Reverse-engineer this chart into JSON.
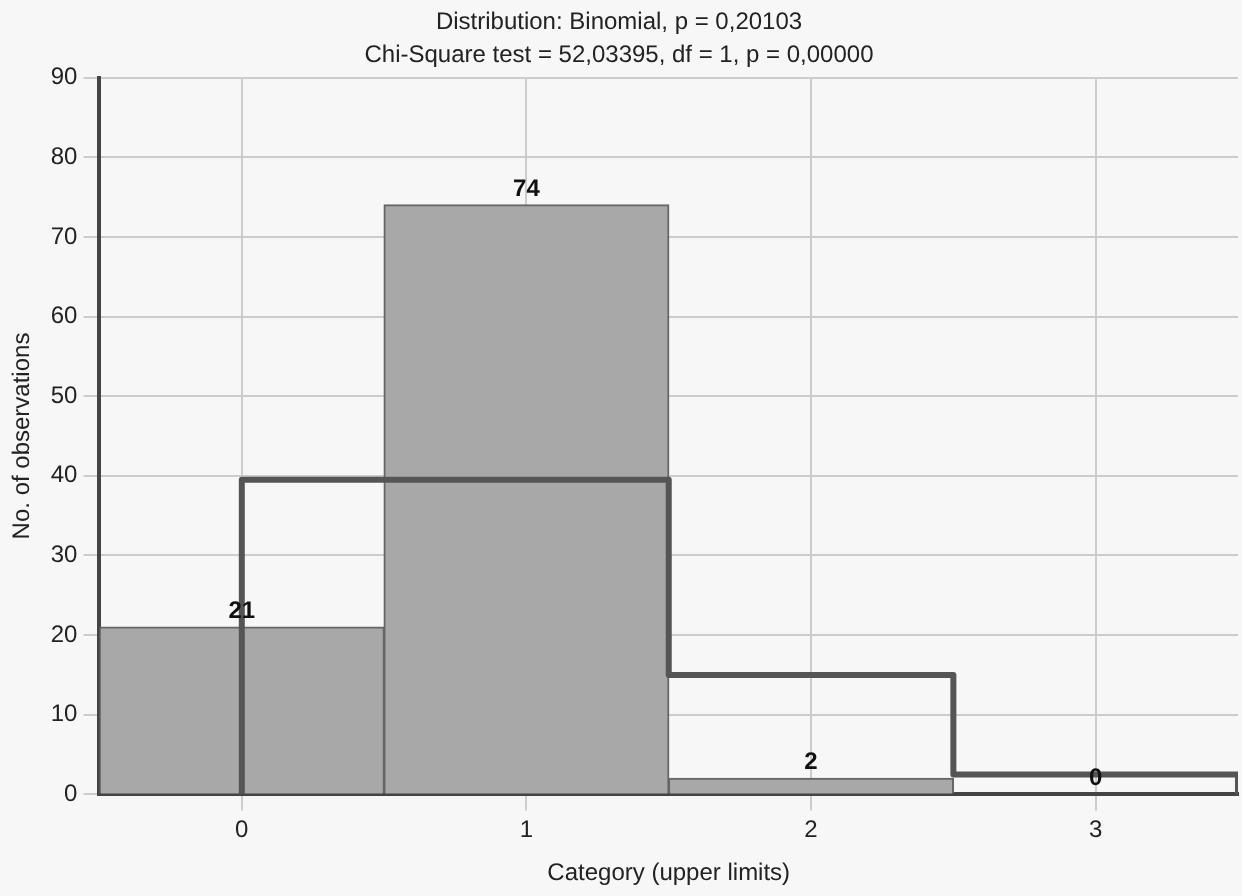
{
  "chart_data": {
    "type": "histogram",
    "title": "Distribution: Binomial, p = 0,20103",
    "subtitle": "Chi-Square test = 52,03395, df = 1, p = 0,00000",
    "xlabel": "Category (upper limits)",
    "ylabel": "No. of observations",
    "bins": [
      -0.5,
      0.5,
      1.5,
      2.5,
      3.5
    ],
    "values": [
      21,
      74,
      2,
      0
    ],
    "color": "#a8a8a8",
    "value_labels": [
      "21",
      "74",
      "2",
      "0"
    ],
    "series": [
      {
        "type": "line",
        "color": "#555555",
        "x": [
          0,
          0,
          1.5,
          1.5,
          2.5,
          2.5,
          3.5,
          3.5
        ],
        "values": [
          0,
          39.5,
          39.5,
          15,
          15,
          2.5,
          2.5,
          0
        ]
      }
    ],
    "xlim": [
      -0.5,
      3.5
    ],
    "xticks": [
      0,
      1,
      2,
      3
    ],
    "ylim": [
      0,
      90
    ],
    "yticks": [
      0,
      10,
      20,
      30,
      40,
      50,
      60,
      70,
      80,
      90
    ],
    "grid": true,
    "legend": false
  }
}
